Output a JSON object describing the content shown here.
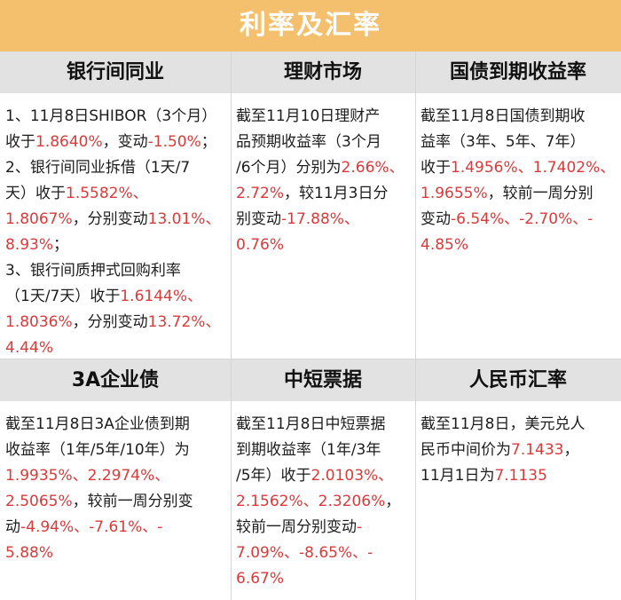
{
  "title": "利率及汇率",
  "headers_top": [
    "银行间同业",
    "理财市场",
    "国债到期收益率"
  ],
  "headers_bottom": [
    "3A企业债",
    "中短票据",
    "人民币汇率"
  ],
  "cells": {
    "interbank": [
      [
        {
          "t": "1、11月8日SHIBOR（3个月）"
        }
      ],
      [
        {
          "t": "收于"
        },
        {
          "t": "1.8640%",
          "h": true
        },
        {
          "t": "，变动"
        },
        {
          "t": "-1.50%",
          "h": true
        },
        {
          "t": "；"
        }
      ],
      [
        {
          "t": "2、银行间同业拆借（1天/7"
        }
      ],
      [
        {
          "t": "天）收于"
        },
        {
          "t": "1.5582%、",
          "h": true
        }
      ],
      [
        {
          "t": "1.8067%",
          "h": true
        },
        {
          "t": "，分别变动"
        },
        {
          "t": "13.01%、",
          "h": true
        }
      ],
      [
        {
          "t": "8.93%",
          "h": true
        },
        {
          "t": "；"
        }
      ],
      [
        {
          "t": "3、银行间质押式回购利率"
        }
      ],
      [
        {
          "t": "（1天/7天）收于"
        },
        {
          "t": "1.6144%、",
          "h": true
        }
      ],
      [
        {
          "t": "1.8036%",
          "h": true
        },
        {
          "t": "，分别变动"
        },
        {
          "t": "13.72%、",
          "h": true
        }
      ],
      [
        {
          "t": "4.44%",
          "h": true
        }
      ]
    ],
    "wealth": [
      [
        {
          "t": "截至11月10日理财产"
        }
      ],
      [
        {
          "t": "品预期收益率（3个月"
        }
      ],
      [
        {
          "t": "/6个月）分别为"
        },
        {
          "t": "2.66%、",
          "h": true
        }
      ],
      [
        {
          "t": "2.72%",
          "h": true
        },
        {
          "t": "，较11月3日分"
        }
      ],
      [
        {
          "t": "别变动"
        },
        {
          "t": "-17.88%、",
          "h": true
        }
      ],
      [
        {
          "t": "0.76%",
          "h": true
        }
      ]
    ],
    "treasury": [
      [
        {
          "t": "截至11月8日国债到期收"
        }
      ],
      [
        {
          "t": "益率（3年、5年、7年）"
        }
      ],
      [
        {
          "t": "收于"
        },
        {
          "t": "1.4956%、1.7402%、",
          "h": true
        }
      ],
      [
        {
          "t": "1.9655%",
          "h": true
        },
        {
          "t": "，较前一周分别"
        }
      ],
      [
        {
          "t": "变动"
        },
        {
          "t": "-6.54%、-2.70%、-",
          "h": true
        }
      ],
      [
        {
          "t": "4.85%",
          "h": true
        }
      ]
    ],
    "corp3a": [
      [
        {
          "t": "截至11月8日3A企业债到期"
        }
      ],
      [
        {
          "t": "收益率（1年/5年/10年）为"
        }
      ],
      [
        {
          "t": "1.9935%、2.2974%、",
          "h": true
        }
      ],
      [
        {
          "t": "2.5065%",
          "h": true
        },
        {
          "t": "，较前一周分别变"
        }
      ],
      [
        {
          "t": "动"
        },
        {
          "t": "-4.94%、-7.61%、-",
          "h": true
        }
      ],
      [
        {
          "t": "5.88%",
          "h": true
        }
      ]
    ],
    "notes": [
      [
        {
          "t": "截至11月8日中短票据"
        }
      ],
      [
        {
          "t": "到期收益率（1年/3年"
        }
      ],
      [
        {
          "t": "/5年）收于"
        },
        {
          "t": "2.0103%、",
          "h": true
        }
      ],
      [
        {
          "t": "2.1562%、2.3206%",
          "h": true
        },
        {
          "t": "，"
        }
      ],
      [
        {
          "t": "较前一周分别变动"
        },
        {
          "t": "-",
          "h": true
        }
      ],
      [
        {
          "t": "7.09%、-8.65%、-",
          "h": true
        }
      ],
      [
        {
          "t": "6.67%",
          "h": true
        }
      ]
    ],
    "rmb": [
      [
        {
          "t": "截至11月8日，美元兑人"
        }
      ],
      [
        {
          "t": "民币中间价为"
        },
        {
          "t": "7.1433",
          "h": true
        },
        {
          "t": "，"
        }
      ],
      [
        {
          "t": "11月1日为"
        },
        {
          "t": "7.1135",
          "h": true
        }
      ]
    ]
  },
  "colors": {
    "banner": "#f5c06e",
    "header_bg": "#e2e2e2",
    "highlight": "#d93a3a",
    "text": "#1c1c1c"
  }
}
